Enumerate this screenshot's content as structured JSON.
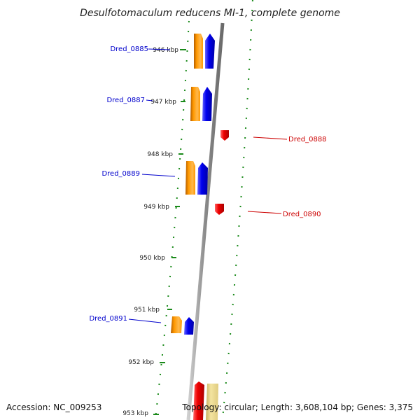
{
  "title": "Desulfotomaculum reducens MI-1, complete genome",
  "accession": "Accession: NC_009253",
  "topology": "Topology: circular; Length: 3,608,104 bp; Genes: 3,375",
  "colors": {
    "forward_label": "#0000cc",
    "reverse_label": "#cc0000",
    "backbone": "#9a9a9a",
    "tick": "#1a8a1a",
    "cds_orange": "#ff9900",
    "gene_blue": "#0000ee",
    "gene_red": "#ee0000",
    "cds_yellow": "#eedd88"
  },
  "positions": [
    {
      "label": "946 kbp"
    },
    {
      "label": "947 kbp"
    },
    {
      "label": "948 kbp"
    },
    {
      "label": "949 kbp"
    },
    {
      "label": "950 kbp"
    },
    {
      "label": "951 kbp"
    },
    {
      "label": "952 kbp"
    },
    {
      "label": "953 kbp"
    }
  ],
  "genes_forward": [
    {
      "name": "Dred_0885"
    },
    {
      "name": "Dred_0887"
    },
    {
      "name": "Dred_0889"
    },
    {
      "name": "Dred_0891"
    }
  ],
  "genes_reverse": [
    {
      "name": "Dred_0888"
    },
    {
      "name": "Dred_0890"
    }
  ]
}
